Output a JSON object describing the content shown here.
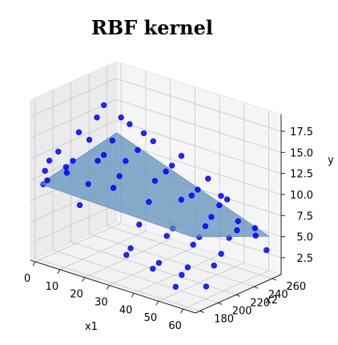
{
  "chart_data": {
    "type": "scatter",
    "projection": "3d",
    "title": "RBF kernel",
    "xlabel": "x1",
    "ylabel": "x2",
    "zlabel": "y",
    "xlim": [
      -2,
      65
    ],
    "ylim": [
      175,
      270
    ],
    "zlim": [
      0.5,
      19.5
    ],
    "x_ticks": [
      "0",
      "10",
      "20",
      "30",
      "40",
      "50",
      "60"
    ],
    "y_ticks": [
      "180",
      "200",
      "220",
      "240",
      "260"
    ],
    "z_ticks": [
      "2.5",
      "5.0",
      "7.5",
      "10.0",
      "12.5",
      "15.0",
      "17.5"
    ],
    "grid": true,
    "marker_color": "#0000ff",
    "surface_color": "#5b8db8",
    "surface": {
      "description": "fitted regression plane",
      "corners": [
        {
          "x1": 0,
          "x2": 180,
          "y": 9.5
        },
        {
          "x1": 62,
          "x2": 180,
          "y": 9.0
        },
        {
          "x1": 62,
          "x2": 265,
          "y": 5.0
        },
        {
          "x1": 0,
          "x2": 265,
          "y": 11.5
        }
      ]
    },
    "series": [
      {
        "points": [
          {
            "x1": 1,
            "x2": 181,
            "y": 9.5
          },
          {
            "x1": 1,
            "x2": 183,
            "y": 11.0
          },
          {
            "x1": 2,
            "x2": 185,
            "y": 12.2
          },
          {
            "x1": 3,
            "x2": 180,
            "y": 10.2
          },
          {
            "x1": 2,
            "x2": 195,
            "y": 12.8
          },
          {
            "x1": 4,
            "x2": 198,
            "y": 11.0
          },
          {
            "x1": 8,
            "x2": 188,
            "y": 11.2
          },
          {
            "x1": 9,
            "x2": 192,
            "y": 12.5
          },
          {
            "x1": 10,
            "x2": 196,
            "y": 15.8
          },
          {
            "x1": 12,
            "x2": 202,
            "y": 14.8
          },
          {
            "x1": 14,
            "x2": 205,
            "y": 17.5
          },
          {
            "x1": 15,
            "x2": 210,
            "y": 18.8
          },
          {
            "x1": 14,
            "x2": 186,
            "y": 8.0
          },
          {
            "x1": 16,
            "x2": 190,
            "y": 10.5
          },
          {
            "x1": 18,
            "x2": 195,
            "y": 13.2
          },
          {
            "x1": 19,
            "x2": 199,
            "y": 13.8
          },
          {
            "x1": 21,
            "x2": 203,
            "y": 15.5
          },
          {
            "x1": 22,
            "x2": 210,
            "y": 18.0
          },
          {
            "x1": 24,
            "x2": 214,
            "y": 17.2
          },
          {
            "x1": 24,
            "x2": 196,
            "y": 10.5
          },
          {
            "x1": 25,
            "x2": 200,
            "y": 11.8
          },
          {
            "x1": 26,
            "x2": 204,
            "y": 13.5
          },
          {
            "x1": 28,
            "x2": 212,
            "y": 14.6
          },
          {
            "x1": 29,
            "x2": 216,
            "y": 16.5
          },
          {
            "x1": 31,
            "x2": 221,
            "y": 15.5
          },
          {
            "x1": 30,
            "x2": 194,
            "y": 3.2
          },
          {
            "x1": 31,
            "x2": 196,
            "y": 4.0
          },
          {
            "x1": 33,
            "x2": 200,
            "y": 6.8
          },
          {
            "x1": 34,
            "x2": 208,
            "y": 9.2
          },
          {
            "x1": 35,
            "x2": 212,
            "y": 11.6
          },
          {
            "x1": 38,
            "x2": 216,
            "y": 12.8
          },
          {
            "x1": 39,
            "x2": 220,
            "y": 13.4
          },
          {
            "x1": 41,
            "x2": 225,
            "y": 14.5
          },
          {
            "x1": 40,
            "x2": 196,
            "y": 2.4
          },
          {
            "x1": 41,
            "x2": 200,
            "y": 3.0
          },
          {
            "x1": 42,
            "x2": 206,
            "y": 6.0
          },
          {
            "x1": 43,
            "x2": 210,
            "y": 6.8
          },
          {
            "x1": 45,
            "x2": 214,
            "y": 10.2
          },
          {
            "x1": 47,
            "x2": 220,
            "y": 10.6
          },
          {
            "x1": 48,
            "x2": 224,
            "y": 11.2
          },
          {
            "x1": 50,
            "x2": 230,
            "y": 12.4
          },
          {
            "x1": 50,
            "x2": 194,
            "y": 1.3
          },
          {
            "x1": 51,
            "x2": 198,
            "y": 2.6
          },
          {
            "x1": 52,
            "x2": 202,
            "y": 3.4
          },
          {
            "x1": 52,
            "x2": 208,
            "y": 5.8
          },
          {
            "x1": 53,
            "x2": 212,
            "y": 6.6
          },
          {
            "x1": 54,
            "x2": 216,
            "y": 7.8
          },
          {
            "x1": 55,
            "x2": 220,
            "y": 8.8
          },
          {
            "x1": 56,
            "x2": 226,
            "y": 10.0
          },
          {
            "x1": 56,
            "x2": 228,
            "y": 11.0
          },
          {
            "x1": 57,
            "x2": 232,
            "y": 10.5
          },
          {
            "x1": 58,
            "x2": 206,
            "y": 1.5
          },
          {
            "x1": 59,
            "x2": 212,
            "y": 3.8
          },
          {
            "x1": 59,
            "x2": 220,
            "y": 4.8
          },
          {
            "x1": 60,
            "x2": 226,
            "y": 6.5
          },
          {
            "x1": 61,
            "x2": 232,
            "y": 7.2
          },
          {
            "x1": 60,
            "x2": 236,
            "y": 8.0
          },
          {
            "x1": 62,
            "x2": 250,
            "y": 5.8
          },
          {
            "x1": 62,
            "x2": 262,
            "y": 3.5
          },
          {
            "x1": 61,
            "x2": 252,
            "y": 6.5
          }
        ]
      }
    ]
  }
}
